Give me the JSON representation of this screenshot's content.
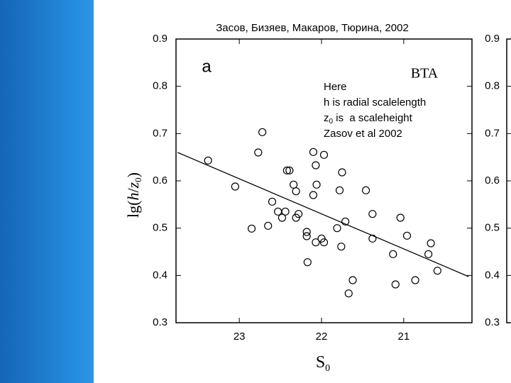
{
  "chart_data": [
    {
      "type": "scatter",
      "title": "Засов, Бизяев, Макаров, Тюрина, 2002",
      "panel_label": "a",
      "instrument": "BTA",
      "note": {
        "line1": "Here",
        "line2": "h is radial scalelength",
        "line3_var": "z",
        "line3_sub": "0",
        "line3_rest": " is  a scaleheight",
        "line4": "Zasov et al 2002"
      },
      "x_label": {
        "text": "S",
        "sub": "0"
      },
      "y_label": {
        "open": "lg(",
        "h": "h",
        "slash": "/",
        "z": "z",
        "sub": "0",
        "close": ")"
      },
      "x": [
        23.38,
        23.05,
        22.85,
        22.77,
        22.72,
        22.65,
        22.6,
        22.53,
        22.48,
        22.44,
        22.42,
        22.39,
        22.34,
        22.31,
        22.31,
        22.28,
        22.18,
        22.18,
        22.17,
        22.1,
        22.1,
        22.07,
        22.06,
        22.07,
        22.0,
        21.97,
        21.97,
        21.81,
        21.78,
        21.76,
        21.75,
        21.71,
        21.67,
        21.62,
        21.46,
        21.38,
        21.38,
        21.13,
        21.1,
        21.04,
        20.96,
        20.86,
        20.7,
        20.67,
        20.59
      ],
      "y": [
        0.643,
        0.588,
        0.499,
        0.66,
        0.703,
        0.505,
        0.556,
        0.535,
        0.522,
        0.535,
        0.622,
        0.622,
        0.592,
        0.578,
        0.522,
        0.53,
        0.492,
        0.483,
        0.428,
        0.661,
        0.57,
        0.633,
        0.592,
        0.47,
        0.478,
        0.655,
        0.47,
        0.5,
        0.58,
        0.461,
        0.618,
        0.514,
        0.362,
        0.39,
        0.58,
        0.53,
        0.478,
        0.445,
        0.381,
        0.522,
        0.484,
        0.39,
        0.445,
        0.468,
        0.41
      ],
      "fit": {
        "x": [
          23.75,
          20.21
        ],
        "y": [
          0.66,
          0.3975
        ]
      },
      "xlim": [
        23.77,
        20.17
      ],
      "xticks": [
        23,
        22,
        21
      ],
      "ylim": [
        0.3,
        0.9
      ],
      "yticks": [
        0.3,
        0.4,
        0.5,
        0.6,
        0.7,
        0.8,
        0.9
      ]
    },
    {
      "type": "scatter",
      "ylim": [
        0.3,
        0.9
      ],
      "yticks": [
        0.3,
        0.4,
        0.5,
        0.6,
        0.7,
        0.8,
        0.9
      ]
    }
  ]
}
